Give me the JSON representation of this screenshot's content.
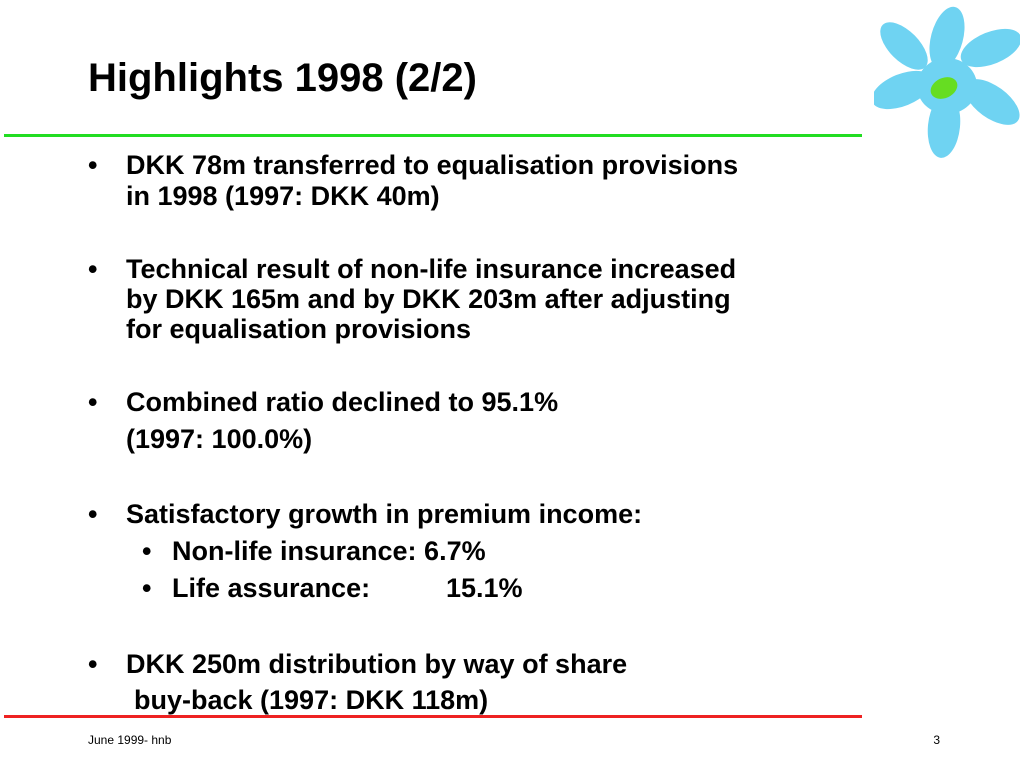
{
  "slide": {
    "title": "Highlights 1998 (2/2)",
    "bullet_glyph": "•",
    "bullets": [
      {
        "lines": [
          "DKK 78m transferred to equalisation provisions",
          "in 1998 (1997: DKK 40m)"
        ]
      },
      {
        "lines": [
          "Technical result of non-life insurance increased",
          "by DKK 165m and by DKK 203m after adjusting",
          "for equalisation provisions"
        ]
      },
      {
        "lines": [
          "Combined ratio declined to 95.1%",
          "(1997: 100.0%)"
        ]
      },
      {
        "lines": [
          "Satisfactory growth in premium income:"
        ],
        "sub_bullets": [
          {
            "label": "Non-life insurance:",
            "value": "6.7%"
          },
          {
            "label": "Life assurance:",
            "value": "15.1%"
          }
        ]
      },
      {
        "lines": [
          "DKK 250m distribution by way of share",
          "buy-back (1997: DKK 118m)"
        ]
      }
    ]
  },
  "footer": {
    "left": "June 1999- hnb",
    "page_number": "3"
  },
  "colors": {
    "top_rule": "#22dd22",
    "bottom_rule": "#ee2222",
    "logo_petals": "#6fd3f2",
    "logo_center": "#66dd22"
  },
  "logo": {
    "icon": "flower-logo-icon"
  }
}
